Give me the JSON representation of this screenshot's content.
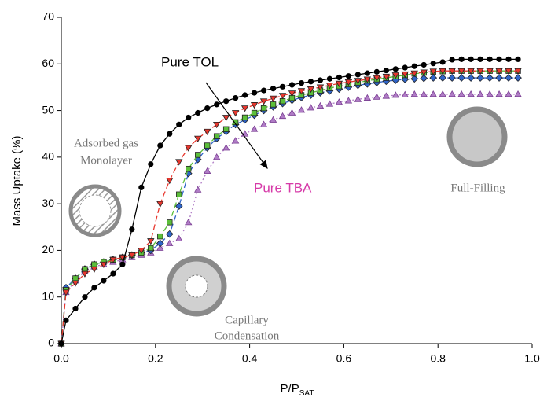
{
  "chart_data": {
    "type": "line",
    "y_label": "Mass Uptake (%)",
    "x_label": {
      "main": "P/P",
      "sub": "SAT"
    },
    "xlim": [
      0,
      1
    ],
    "ylim": [
      0,
      70
    ],
    "xticks": [
      {
        "value": 0,
        "label": "0.0"
      },
      {
        "value": 0.2,
        "label": "0.2"
      },
      {
        "value": 0.4,
        "label": "0.4"
      },
      {
        "value": 0.6,
        "label": "0.6"
      },
      {
        "value": 0.8,
        "label": "0.8"
      },
      {
        "value": 1,
        "label": "1.0"
      }
    ],
    "yticks": [
      0,
      10,
      20,
      30,
      40,
      50,
      60,
      70
    ],
    "annotations": {
      "tol": "Pure TOL",
      "tba": "Pure TBA",
      "mono1": "Adsorbed gas",
      "mono2": "Monolayer",
      "cap1": "Capillary",
      "cap2": "Condensation",
      "full": "Full-Filling"
    },
    "x": [
      0,
      0.01,
      0.03,
      0.05,
      0.07,
      0.09,
      0.11,
      0.13,
      0.15,
      0.17,
      0.19,
      0.21,
      0.23,
      0.25,
      0.27,
      0.29,
      0.31,
      0.33,
      0.35,
      0.37,
      0.39,
      0.41,
      0.43,
      0.45,
      0.47,
      0.49,
      0.51,
      0.53,
      0.55,
      0.57,
      0.59,
      0.61,
      0.63,
      0.65,
      0.67,
      0.69,
      0.71,
      0.73,
      0.75,
      0.77,
      0.79,
      0.81,
      0.83,
      0.85,
      0.87,
      0.89,
      0.91,
      0.93,
      0.95,
      0.97
    ],
    "series": [
      {
        "color": "#000000",
        "marker": "circle",
        "dash": "solid",
        "values": [
          0,
          5,
          7.5,
          10,
          12,
          13.5,
          15,
          17,
          24.5,
          33.5,
          38.5,
          42.5,
          45,
          47,
          48.5,
          49.5,
          50.5,
          51.3,
          52,
          52.7,
          53.3,
          53.8,
          54.3,
          54.7,
          55.1,
          55.5,
          55.9,
          56.2,
          56.5,
          56.8,
          57.1,
          57.4,
          57.7,
          58,
          58.3,
          58.6,
          58.9,
          59.2,
          59.5,
          59.8,
          60.1,
          60.4,
          60.9,
          61,
          61,
          61,
          61,
          61,
          61,
          61
        ]
      },
      {
        "color": "#e8372e",
        "marker": "triangle-down",
        "dash": "dashed",
        "values": [
          0,
          11,
          13,
          15,
          16,
          17,
          18,
          18.5,
          19,
          20,
          22,
          30,
          35,
          39,
          42,
          44,
          45.5,
          47,
          48.5,
          49.5,
          50.5,
          51.2,
          52,
          52.6,
          53.2,
          53.7,
          54.2,
          54.6,
          55,
          55.4,
          55.8,
          56.1,
          56.4,
          56.7,
          57,
          57.3,
          57.6,
          57.8,
          58,
          58.2,
          58.4,
          58.5,
          58.5,
          58.5,
          58.5,
          58.5,
          58.5,
          58.5,
          58.5,
          58.5
        ]
      },
      {
        "color": "#5cbf3a",
        "marker": "square",
        "dash": "dashed",
        "values": [
          0,
          11.5,
          14,
          16,
          17,
          17.5,
          18,
          18.5,
          19,
          19.5,
          20.5,
          23,
          26,
          32,
          37.5,
          40.5,
          42.5,
          44.5,
          46,
          47.5,
          48.5,
          49.5,
          50.5,
          51.3,
          52,
          52.7,
          53.3,
          53.8,
          54.3,
          54.8,
          55.2,
          55.6,
          56,
          56.4,
          56.7,
          57,
          57.3,
          57.6,
          57.9,
          58.1,
          58.3,
          58.4,
          58.5,
          58.5,
          58.5,
          58.5,
          58.5,
          58.5,
          58.5,
          58.5
        ]
      },
      {
        "color": "#2f64c8",
        "marker": "diamond",
        "dash": "dashed",
        "values": [
          0,
          12,
          14,
          16,
          17,
          17.5,
          18,
          18.5,
          19,
          19.5,
          20,
          21.5,
          23.5,
          29.5,
          36.5,
          39.5,
          42,
          44,
          45.5,
          47,
          48,
          49,
          50,
          50.8,
          51.5,
          52.2,
          52.8,
          53.3,
          53.8,
          54.2,
          54.6,
          55,
          55.4,
          55.7,
          56,
          56.3,
          56.5,
          56.7,
          56.8,
          56.9,
          57,
          57,
          57,
          57,
          57,
          57,
          57,
          57,
          57,
          57
        ]
      },
      {
        "color": "#b07cc6",
        "marker": "triangle-up",
        "dash": "dotted",
        "values": [
          0,
          11,
          13.5,
          15.5,
          16.5,
          17,
          17.5,
          18,
          18.5,
          19,
          19.5,
          20.5,
          21.5,
          22.5,
          26,
          33,
          37,
          40,
          42,
          43.5,
          45,
          46,
          47,
          48,
          48.8,
          49.5,
          50.1,
          50.6,
          51,
          51.4,
          51.8,
          52.1,
          52.4,
          52.7,
          52.9,
          53.1,
          53.3,
          53.4,
          53.5,
          53.5,
          53.5,
          53.5,
          53.5,
          53.5,
          53.5,
          53.5,
          53.5,
          53.5,
          53.5,
          53.5
        ]
      }
    ]
  }
}
